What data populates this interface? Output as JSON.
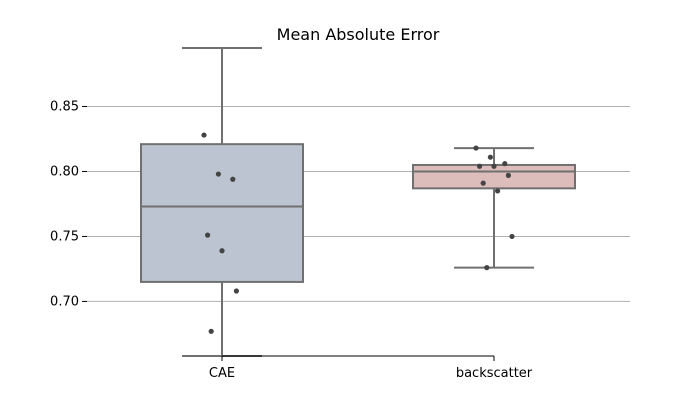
{
  "chart_data": {
    "type": "box",
    "title": "Mean Absolute Error",
    "xlabel": "",
    "ylabel": "",
    "categories": [
      "CAE",
      "backscatter"
    ],
    "ylim": [
      0.658,
      0.895
    ],
    "yticks": [
      0.7,
      0.75,
      0.8,
      0.85
    ],
    "ytick_labels": [
      "0.70",
      "0.75",
      "0.80",
      "0.85"
    ],
    "grid": "horizontal",
    "boxes": [
      {
        "category": "CAE",
        "color": "#bdc4d1",
        "q1": 0.715,
        "median": 0.773,
        "q3": 0.821,
        "whisker_low": 0.658,
        "whisker_high": 0.895,
        "points": [
          0.828,
          0.798,
          0.794,
          0.751,
          0.739,
          0.708,
          0.677
        ]
      },
      {
        "category": "backscatter",
        "color": "#ddbcbc",
        "q1": 0.787,
        "median": 0.8,
        "q3": 0.805,
        "whisker_low": 0.726,
        "whisker_high": 0.818,
        "points": [
          0.818,
          0.811,
          0.806,
          0.804,
          0.804,
          0.797,
          0.791,
          0.785,
          0.75,
          0.726
        ]
      }
    ],
    "colors": {
      "box_edge": "#707070",
      "point": "#444444",
      "grid": "#b0b0b0",
      "axis": "#000000"
    }
  }
}
